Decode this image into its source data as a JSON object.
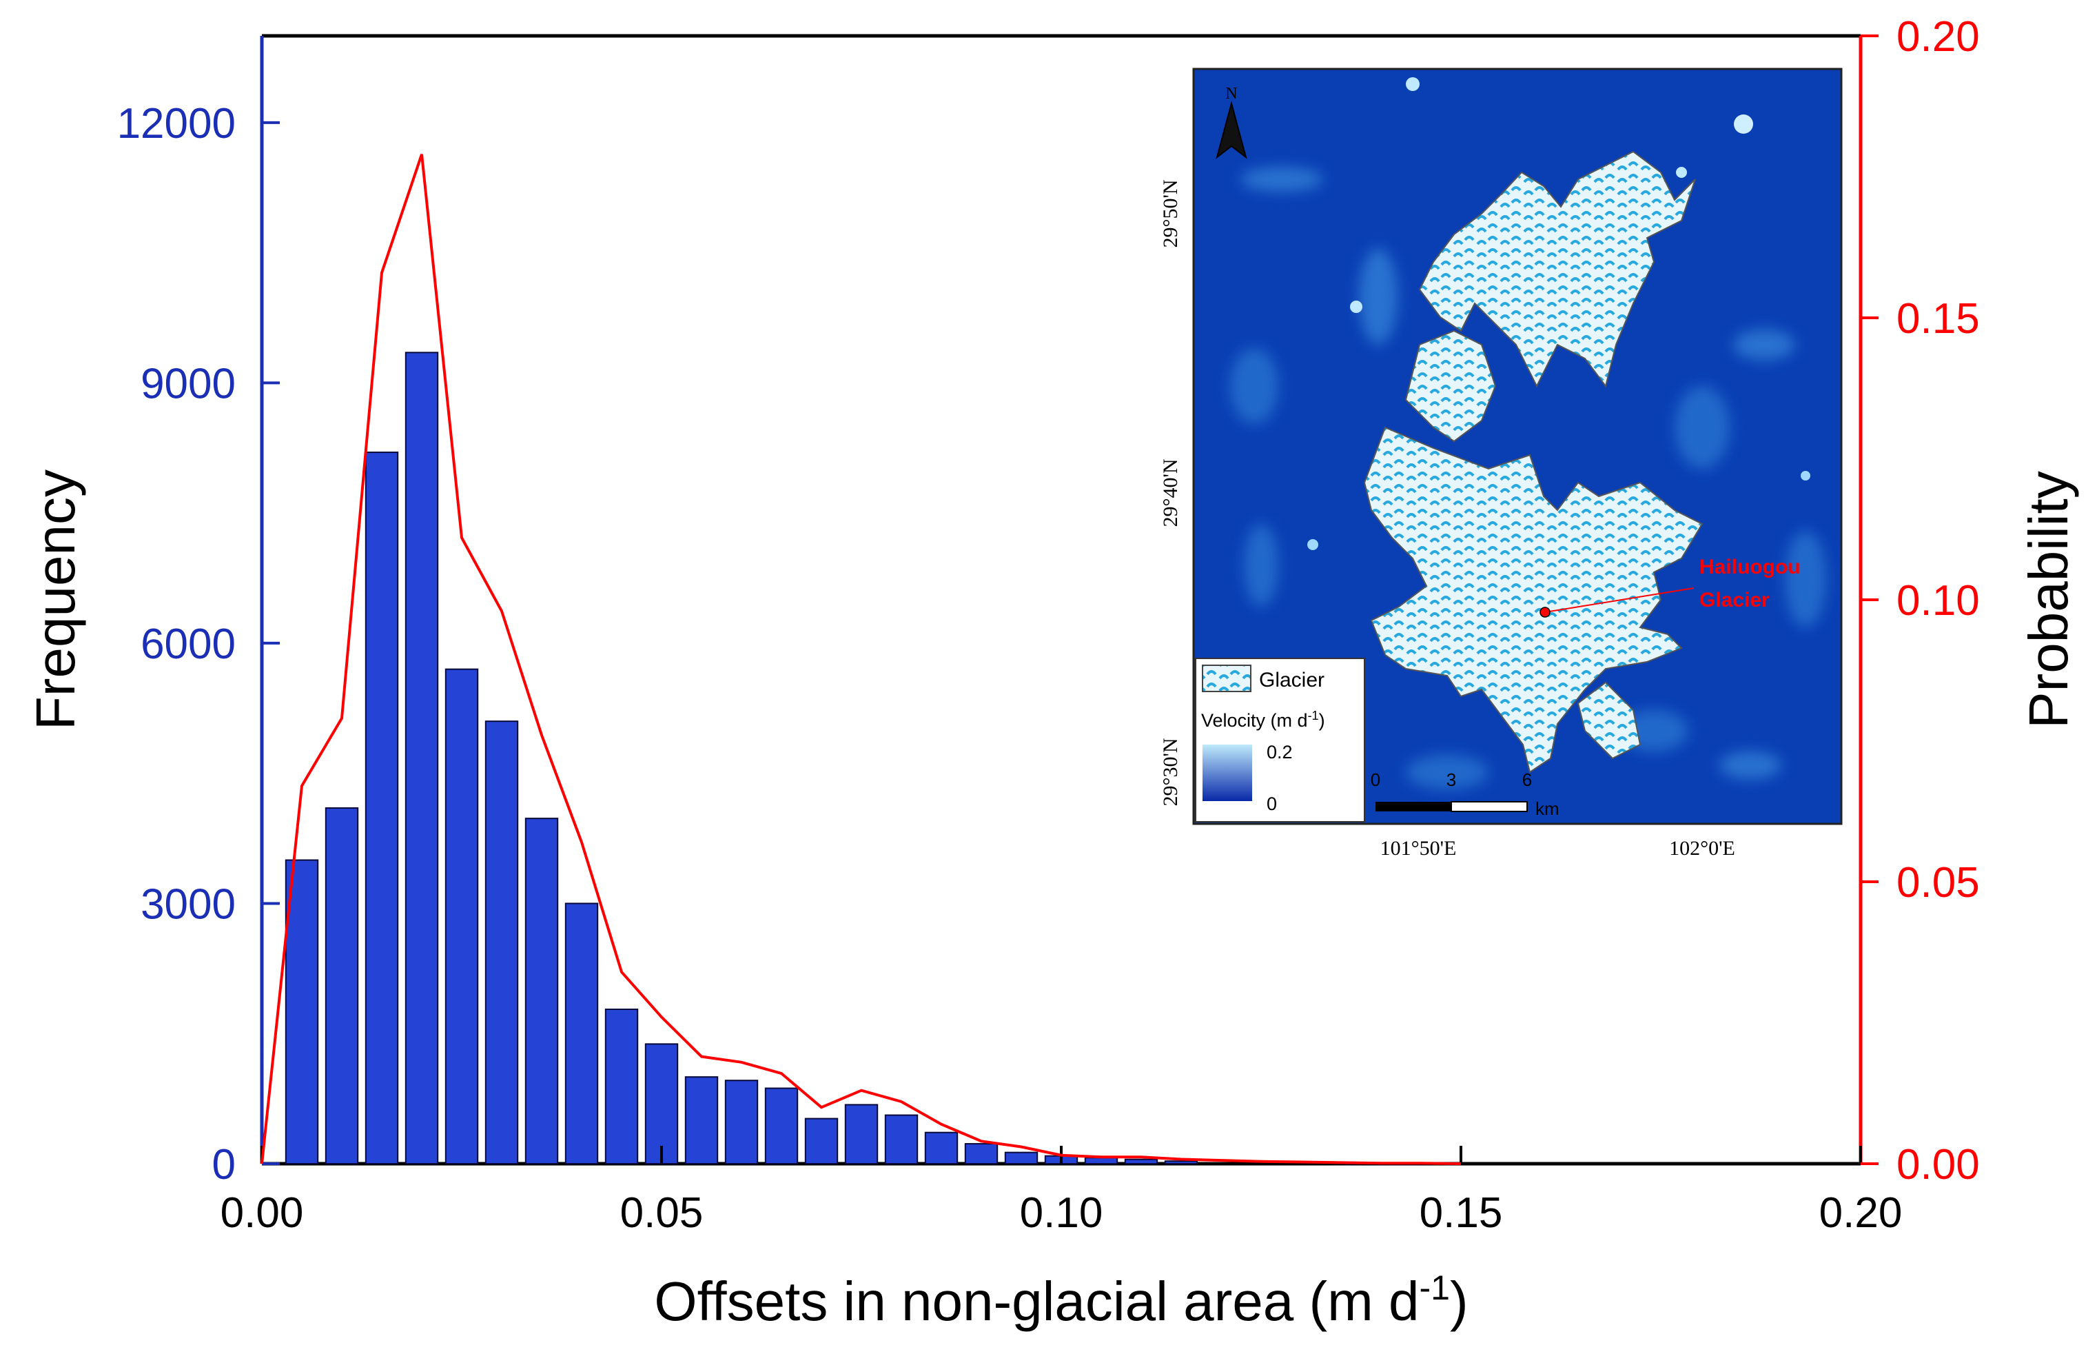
{
  "chart_data": {
    "type": "bar",
    "xlabel": "Offsets in non-glacial area (m d",
    "xlabel_superscript": "-1",
    "xlabel_close": ")",
    "ylabel_left": "Frequency",
    "ylabel_right": "Probability",
    "xlim": [
      0,
      0.2
    ],
    "ylim_left": [
      0,
      13000
    ],
    "ylim_right": [
      0,
      0.2
    ],
    "x_ticks": [
      "0.00",
      "0.05",
      "0.10",
      "0.15",
      "0.20"
    ],
    "y_ticks_left": [
      "0",
      "3000",
      "6000",
      "9000",
      "12000"
    ],
    "y_ticks_right": [
      "0.00",
      "0.05",
      "0.10",
      "0.15",
      "0.20"
    ],
    "colors": {
      "bars": "#2544d6",
      "bar_edge": "#0a0a3a",
      "line": "#ff0000",
      "left_axis_text": "#1a2fb5",
      "right_axis": "#ff0000"
    },
    "series": [
      {
        "name": "Frequency",
        "type": "bar",
        "axis": "left",
        "x": [
          0.005,
          0.01,
          0.015,
          0.02,
          0.025,
          0.03,
          0.035,
          0.04,
          0.045,
          0.05,
          0.055,
          0.06,
          0.065,
          0.07,
          0.075,
          0.08,
          0.085,
          0.09,
          0.095,
          0.1,
          0.105,
          0.11,
          0.115
        ],
        "values": [
          3500,
          4100,
          8200,
          9350,
          5700,
          5100,
          3980,
          3000,
          1780,
          1380,
          1000,
          960,
          870,
          520,
          680,
          560,
          360,
          230,
          130,
          90,
          70,
          50,
          30
        ]
      },
      {
        "name": "Probability",
        "type": "line",
        "axis": "right",
        "x": [
          0.0,
          0.005,
          0.01,
          0.015,
          0.02,
          0.025,
          0.03,
          0.035,
          0.04,
          0.045,
          0.05,
          0.055,
          0.06,
          0.065,
          0.07,
          0.075,
          0.08,
          0.085,
          0.09,
          0.095,
          0.1,
          0.105,
          0.11,
          0.115,
          0.12,
          0.125,
          0.13,
          0.135,
          0.14,
          0.145,
          0.15
        ],
        "values": [
          0.0,
          0.067,
          0.079,
          0.158,
          0.179,
          0.111,
          0.098,
          0.076,
          0.057,
          0.034,
          0.026,
          0.019,
          0.018,
          0.016,
          0.01,
          0.013,
          0.011,
          0.007,
          0.004,
          0.003,
          0.0015,
          0.0012,
          0.0012,
          0.0008,
          0.0006,
          0.0004,
          0.0003,
          0.0002,
          0.0001,
          0.0001,
          0.0
        ]
      }
    ]
  },
  "inset": {
    "north_label": "N",
    "lat_labels": [
      "29°50'N",
      "29°40'N",
      "29°30'N"
    ],
    "lon_labels": [
      "101°50'E",
      "102°0'E"
    ],
    "legend_glacier": "Glacier",
    "legend_velocity_prefix": "Velocity (m d",
    "legend_velocity_sup": "-1",
    "legend_velocity_suffix": ")",
    "velocity_max": "0.2",
    "velocity_min": "0",
    "scale_ticks": [
      "0",
      "3",
      "6"
    ],
    "scale_unit": "km",
    "annotation_line1": "Hailuogou",
    "annotation_line2": "Glacier",
    "colors": {
      "map_bg": "#0a3fb3",
      "glacier": "#e6f6fb",
      "glacier_stripe": "#27a9df",
      "annotation": "#ff0000"
    }
  }
}
